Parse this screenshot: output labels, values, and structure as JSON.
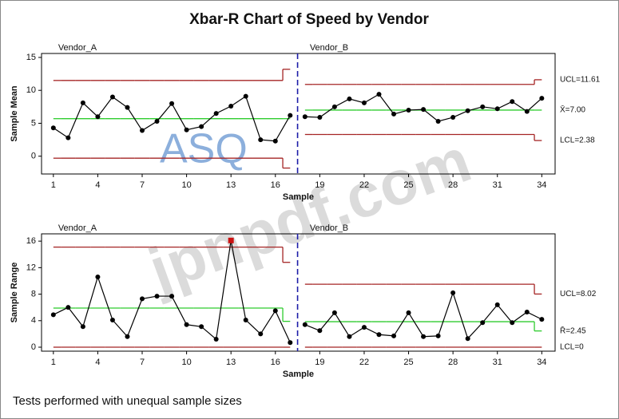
{
  "title": "Xbar-R Chart of Speed by Vendor",
  "footnote": "Tests performed with unequal sample sizes",
  "watermarks": [
    "ASQ",
    "jpnpdf.com"
  ],
  "chart_data": [
    {
      "type": "control",
      "y_label": "Sample Mean",
      "x_label": "Sample",
      "x": [
        1,
        2,
        3,
        4,
        5,
        6,
        7,
        8,
        9,
        10,
        11,
        12,
        13,
        14,
        15,
        16,
        17,
        18,
        19,
        20,
        21,
        22,
        23,
        24,
        25,
        26,
        27,
        28,
        29,
        30,
        31,
        32,
        33,
        34
      ],
      "values": [
        4.3,
        2.8,
        8.1,
        6.0,
        9.0,
        7.4,
        3.9,
        5.3,
        8.0,
        4.0,
        4.5,
        6.5,
        7.6,
        9.1,
        2.5,
        2.3,
        6.2,
        6.0,
        5.9,
        7.5,
        8.7,
        8.1,
        9.4,
        6.4,
        7.0,
        7.1,
        5.3,
        5.9,
        6.9,
        7.5,
        7.2,
        8.3,
        6.8,
        8.8
      ],
      "color": "#000000",
      "flagged": [],
      "flag_color": "#cc1111",
      "groups": [
        {
          "label": "Vendor_A",
          "start": 1,
          "end": 17
        },
        {
          "label": "Vendor_B",
          "start": 18,
          "end": 34
        }
      ],
      "ucl": [
        11.5,
        11.5,
        11.5,
        11.5,
        11.5,
        11.5,
        11.5,
        11.5,
        11.5,
        11.5,
        11.5,
        11.5,
        11.5,
        11.5,
        11.5,
        11.5,
        13.2,
        10.9,
        10.9,
        10.9,
        10.9,
        10.9,
        10.9,
        10.9,
        10.9,
        10.9,
        10.9,
        10.9,
        10.9,
        10.9,
        10.9,
        10.9,
        10.9,
        11.61
      ],
      "cl": [
        5.7,
        5.7,
        5.7,
        5.7,
        5.7,
        5.7,
        5.7,
        5.7,
        5.7,
        5.7,
        5.7,
        5.7,
        5.7,
        5.7,
        5.7,
        5.7,
        5.7,
        7.0,
        7.0,
        7.0,
        7.0,
        7.0,
        7.0,
        7.0,
        7.0,
        7.0,
        7.0,
        7.0,
        7.0,
        7.0,
        7.0,
        7.0,
        7.0,
        7.0
      ],
      "lcl": [
        -0.3,
        -0.3,
        -0.3,
        -0.3,
        -0.3,
        -0.3,
        -0.3,
        -0.3,
        -0.3,
        -0.3,
        -0.3,
        -0.3,
        -0.3,
        -0.3,
        -0.3,
        -0.3,
        -1.8,
        3.3,
        3.3,
        3.3,
        3.3,
        3.3,
        3.3,
        3.3,
        3.3,
        3.3,
        3.3,
        3.3,
        3.3,
        3.3,
        3.3,
        3.3,
        3.3,
        2.38
      ],
      "limit_color": "#a52525",
      "center_color": "#2ecc2e",
      "divider_color": "#1c1ca8",
      "limit_labels": [
        {
          "value": 11.61,
          "label": "UCL=11.61"
        },
        {
          "value": 7.0,
          "label": "X̄=7.00"
        },
        {
          "value": 2.38,
          "label": "LCL=2.38"
        }
      ],
      "xlim": [
        0.2,
        34.9
      ],
      "ylim": [
        -2.7,
        15.6
      ],
      "xticks": [
        1,
        4,
        7,
        10,
        13,
        16,
        19,
        22,
        25,
        28,
        31,
        34
      ],
      "yticks": [
        0,
        5,
        10,
        15
      ]
    },
    {
      "type": "control",
      "y_label": "Sample Range",
      "x_label": "Sample",
      "x": [
        1,
        2,
        3,
        4,
        5,
        6,
        7,
        8,
        9,
        10,
        11,
        12,
        13,
        14,
        15,
        16,
        17,
        18,
        19,
        20,
        21,
        22,
        23,
        24,
        25,
        26,
        27,
        28,
        29,
        30,
        31,
        32,
        33,
        34
      ],
      "values": [
        4.9,
        6.0,
        3.1,
        10.6,
        4.1,
        1.6,
        7.3,
        7.7,
        7.7,
        3.4,
        3.1,
        1.2,
        16.1,
        4.1,
        2.0,
        5.5,
        0.7,
        3.4,
        2.5,
        5.2,
        1.6,
        3.0,
        1.9,
        1.7,
        5.2,
        1.6,
        1.7,
        8.2,
        1.3,
        3.7,
        6.4,
        3.7,
        5.3,
        4.2
      ],
      "color": "#000000",
      "flagged": [
        13
      ],
      "flag_color": "#cc1111",
      "groups": [
        {
          "label": "Vendor_A",
          "start": 1,
          "end": 17
        },
        {
          "label": "Vendor_B",
          "start": 18,
          "end": 34
        }
      ],
      "ucl": [
        15.1,
        15.1,
        15.1,
        15.1,
        15.1,
        15.1,
        15.1,
        15.1,
        15.1,
        15.1,
        15.1,
        15.1,
        15.1,
        15.1,
        15.1,
        15.1,
        12.8,
        9.5,
        9.5,
        9.5,
        9.5,
        9.5,
        9.5,
        9.5,
        9.5,
        9.5,
        9.5,
        9.5,
        9.5,
        9.5,
        9.5,
        9.5,
        9.5,
        8.02
      ],
      "cl": [
        5.9,
        5.9,
        5.9,
        5.9,
        5.9,
        5.9,
        5.9,
        5.9,
        5.9,
        5.9,
        5.9,
        5.9,
        5.9,
        5.9,
        5.9,
        5.9,
        3.9,
        3.85,
        3.85,
        3.85,
        3.85,
        3.85,
        3.85,
        3.85,
        3.85,
        3.85,
        3.85,
        3.85,
        3.85,
        3.85,
        3.85,
        3.85,
        3.85,
        2.45
      ],
      "lcl": [
        0,
        0,
        0,
        0,
        0,
        0,
        0,
        0,
        0,
        0,
        0,
        0,
        0,
        0,
        0,
        0,
        0,
        0,
        0,
        0,
        0,
        0,
        0,
        0,
        0,
        0,
        0,
        0,
        0,
        0,
        0,
        0,
        0,
        0
      ],
      "limit_color": "#a52525",
      "center_color": "#2ecc2e",
      "divider_color": "#1c1ca8",
      "limit_labels": [
        {
          "value": 8.02,
          "label": "UCL=8.02"
        },
        {
          "value": 2.45,
          "label": "R̄=2.45"
        },
        {
          "value": 0,
          "label": "LCL=0"
        }
      ],
      "xlim": [
        0.2,
        34.9
      ],
      "ylim": [
        -0.6,
        17.1
      ],
      "xticks": [
        1,
        4,
        7,
        10,
        13,
        16,
        19,
        22,
        25,
        28,
        31,
        34
      ],
      "yticks": [
        0,
        4,
        8,
        12,
        16
      ]
    }
  ]
}
